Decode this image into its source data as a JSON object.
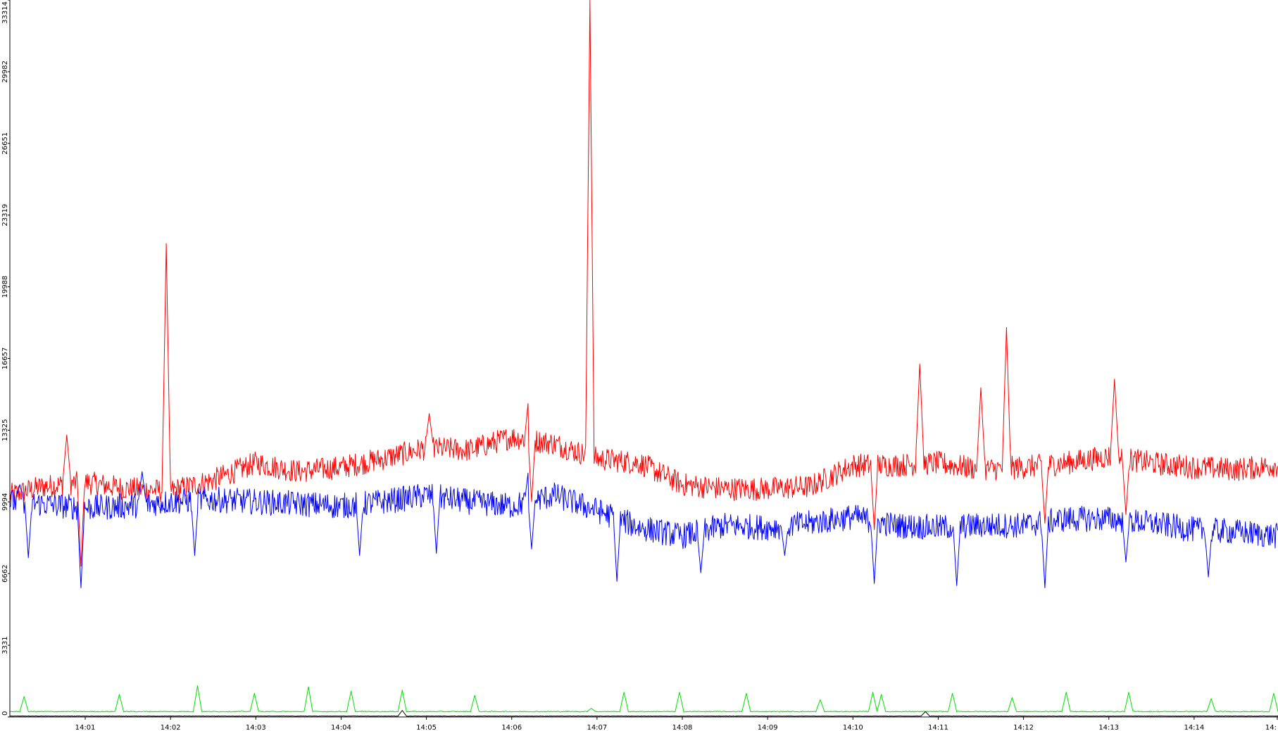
{
  "chart_data": {
    "type": "line",
    "title": "",
    "xlabel": "",
    "ylabel": "",
    "ylim": [
      0,
      33314
    ],
    "y_ticks": [
      0,
      3331,
      6662,
      9994,
      13325,
      16657,
      19988,
      23319,
      26651,
      29982,
      33314
    ],
    "y_tick_labels": [
      "0",
      "3331",
      "6662",
      "9994",
      "13325",
      "16657",
      "19988",
      "23319",
      "26651",
      "29982",
      "33314"
    ],
    "x_range": [
      "14:00:07",
      "14:14:59"
    ],
    "x_tick_labels": [
      "14:01",
      "14:02",
      "14:03",
      "14:04",
      "14:05",
      "14:06",
      "14:07",
      "14:08",
      "14:09",
      "14:10",
      "14:11",
      "14:12",
      "14:13",
      "14:14",
      "14:"
    ],
    "grid": false,
    "series": [
      {
        "color": "#ff0000",
        "baseline": [
          [
            "14:00:07",
            10300
          ],
          [
            "14:00:30",
            10700
          ],
          [
            "14:01:00",
            10900
          ],
          [
            "14:01:30",
            10600
          ],
          [
            "14:02:00",
            10500
          ],
          [
            "14:02:30",
            11000
          ],
          [
            "14:03:00",
            11800
          ],
          [
            "14:03:30",
            11400
          ],
          [
            "14:04:00",
            11600
          ],
          [
            "14:04:30",
            12000
          ],
          [
            "14:05:00",
            12500
          ],
          [
            "14:05:30",
            12400
          ],
          [
            "14:06:00",
            13000
          ],
          [
            "14:06:30",
            12700
          ],
          [
            "14:07:00",
            12000
          ],
          [
            "14:07:30",
            11800
          ],
          [
            "14:08:00",
            10800
          ],
          [
            "14:08:30",
            10600
          ],
          [
            "14:09:00",
            10600
          ],
          [
            "14:09:30",
            10700
          ],
          [
            "14:10:00",
            11700
          ],
          [
            "14:10:30",
            11700
          ],
          [
            "14:11:00",
            11800
          ],
          [
            "14:11:30",
            11500
          ],
          [
            "14:12:00",
            11600
          ],
          [
            "14:12:30",
            11800
          ],
          [
            "14:13:00",
            12100
          ],
          [
            "14:13:30",
            11800
          ],
          [
            "14:14:00",
            11600
          ],
          [
            "14:14:30",
            11500
          ],
          [
            "14:14:59",
            11700
          ]
        ],
        "spikes": [
          [
            "14:00:47",
            13100
          ],
          [
            "14:01:57",
            22000
          ],
          [
            "14:05:02",
            14100
          ],
          [
            "14:06:12",
            14900
          ],
          [
            "14:06:55",
            33314
          ],
          [
            "14:10:47",
            16400
          ],
          [
            "14:11:30",
            15300
          ],
          [
            "14:11:48",
            18100
          ],
          [
            "14:13:04",
            15700
          ]
        ],
        "dips": [
          [
            "14:00:57",
            7000
          ],
          [
            "14:06:14",
            10000
          ],
          [
            "14:10:15",
            8700
          ],
          [
            "14:12:15",
            9000
          ],
          [
            "14:13:12",
            9400
          ]
        ]
      },
      {
        "color": "#0000ff",
        "baseline": [
          [
            "14:00:07",
            10000
          ],
          [
            "14:00:30",
            9900
          ],
          [
            "14:01:00",
            9700
          ],
          [
            "14:01:30",
            9800
          ],
          [
            "14:02:00",
            10000
          ],
          [
            "14:02:30",
            10100
          ],
          [
            "14:03:00",
            10000
          ],
          [
            "14:03:30",
            9900
          ],
          [
            "14:04:00",
            9800
          ],
          [
            "14:04:30",
            10000
          ],
          [
            "14:05:00",
            10300
          ],
          [
            "14:05:30",
            10000
          ],
          [
            "14:06:00",
            9800
          ],
          [
            "14:06:30",
            10300
          ],
          [
            "14:07:00",
            9600
          ],
          [
            "14:07:30",
            8800
          ],
          [
            "14:08:00",
            8400
          ],
          [
            "14:08:30",
            8900
          ],
          [
            "14:09:00",
            8800
          ],
          [
            "14:09:30",
            9000
          ],
          [
            "14:10:00",
            9300
          ],
          [
            "14:10:30",
            8900
          ],
          [
            "14:11:00",
            8800
          ],
          [
            "14:11:30",
            8900
          ],
          [
            "14:12:00",
            8900
          ],
          [
            "14:12:30",
            9200
          ],
          [
            "14:13:00",
            9200
          ],
          [
            "14:13:30",
            9000
          ],
          [
            "14:14:00",
            8700
          ],
          [
            "14:14:30",
            8600
          ],
          [
            "14:14:59",
            8400
          ]
        ],
        "spikes": [
          [
            "14:00:14",
            10800
          ],
          [
            "14:01:40",
            11400
          ],
          [
            "14:06:12",
            11600
          ],
          [
            "14:13:12",
            10500
          ]
        ],
        "dips": [
          [
            "14:00:20",
            7400
          ],
          [
            "14:00:57",
            6000
          ],
          [
            "14:02:17",
            7500
          ],
          [
            "14:04:13",
            7500
          ],
          [
            "14:05:07",
            7600
          ],
          [
            "14:06:14",
            7800
          ],
          [
            "14:07:14",
            6300
          ],
          [
            "14:08:13",
            6700
          ],
          [
            "14:09:12",
            7500
          ],
          [
            "14:10:15",
            6200
          ],
          [
            "14:11:13",
            6100
          ],
          [
            "14:12:15",
            6000
          ],
          [
            "14:13:12",
            7200
          ],
          [
            "14:14:10",
            6500
          ]
        ]
      },
      {
        "color": "#00e000",
        "baseline": [
          [
            "14:00:07",
            250
          ],
          [
            "14:14:59",
            250
          ]
        ],
        "spikes": [
          [
            "14:00:17",
            950
          ],
          [
            "14:01:24",
            1050
          ],
          [
            "14:02:19",
            1450
          ],
          [
            "14:02:59",
            1100
          ],
          [
            "14:03:37",
            1400
          ],
          [
            "14:04:07",
            1200
          ],
          [
            "14:04:43",
            1250
          ],
          [
            "14:05:34",
            1000
          ],
          [
            "14:06:56",
            400
          ],
          [
            "14:07:19",
            1150
          ],
          [
            "14:07:58",
            1150
          ],
          [
            "14:08:45",
            1100
          ],
          [
            "14:09:37",
            800
          ],
          [
            "14:10:14",
            1150
          ],
          [
            "14:10:20",
            1050
          ],
          [
            "14:11:10",
            1100
          ],
          [
            "14:11:52",
            900
          ],
          [
            "14:12:30",
            1150
          ],
          [
            "14:13:14",
            1150
          ],
          [
            "14:14:12",
            850
          ],
          [
            "14:14:56",
            1100
          ]
        ]
      },
      {
        "color": "#000000",
        "baseline": [
          [
            "14:00:07",
            40
          ],
          [
            "14:14:59",
            40
          ]
        ],
        "spikes": [
          [
            "14:04:43",
            300
          ],
          [
            "14:10:51",
            250
          ]
        ]
      }
    ]
  }
}
